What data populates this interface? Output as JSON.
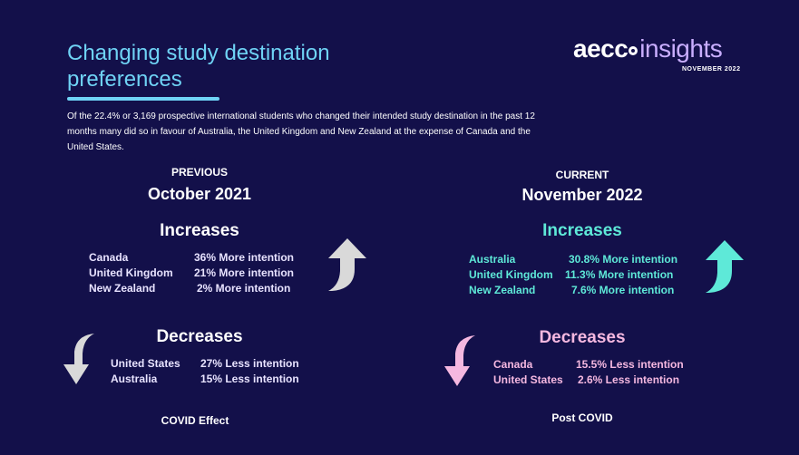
{
  "header": {
    "title": "Changing study destination preferences",
    "intro": "Of the 22.4% or 3,169 prospective international students who changed their intended study destination in the past 12 months many did so in favour of Australia, the United Kingdom and New Zealand at the expense of Canada and the United States."
  },
  "logo": {
    "brand_left": "aecc",
    "brand_word": "insights",
    "date": "NOVEMBER 2022"
  },
  "previous": {
    "label": "PREVIOUS",
    "period": "October 2021",
    "increases_title": "Increases",
    "increases": [
      {
        "country": "Canada",
        "value": "36% More intention"
      },
      {
        "country": "United Kingdom",
        "value": "21% More intention"
      },
      {
        "country": "New Zealand",
        "value": "2% More intention"
      }
    ],
    "decreases_title": "Decreases",
    "decreases": [
      {
        "country": "United States",
        "value": "27% Less intention"
      },
      {
        "country": "Australia",
        "value": "15% Less intention"
      }
    ],
    "footer": "COVID Effect"
  },
  "current": {
    "label": "CURRENT",
    "period": "November 2022",
    "increases_title": "Increases",
    "increases": [
      {
        "country": "Australia",
        "value": "30.8% More intention"
      },
      {
        "country": "United Kingdom",
        "value": "11.3% More intention"
      },
      {
        "country": "New Zealand",
        "value": "7.6% More intention"
      }
    ],
    "decreases_title": "Decreases",
    "decreases": [
      {
        "country": "Canada",
        "value": "15.5% Less intention"
      },
      {
        "country": "United States",
        "value": "2.6% Less intention"
      }
    ],
    "footer": "Post COVID"
  },
  "colors": {
    "background": "#13104a",
    "title": "#6fd3f5",
    "current_increase": "#5ee9d8",
    "current_decrease": "#f5b8e0",
    "previous_arrow": "#d9d9d9"
  },
  "icons": {
    "prev_up": "curved-up-arrow-icon",
    "prev_down": "curved-down-arrow-icon",
    "cur_up": "curved-up-arrow-icon",
    "cur_down": "curved-down-arrow-icon"
  }
}
